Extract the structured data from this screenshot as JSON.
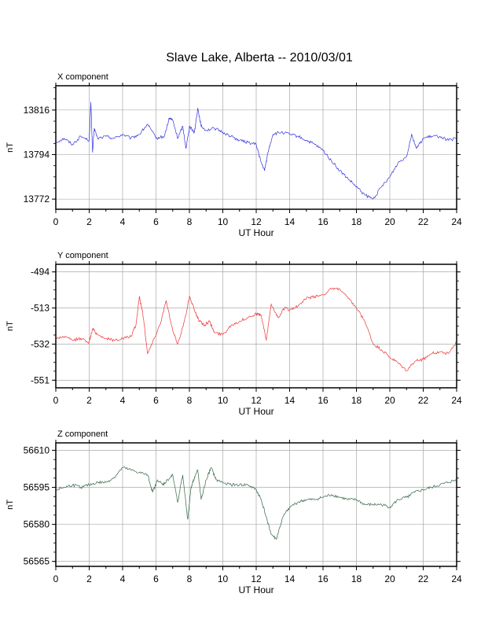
{
  "title": "Slave Lake, Alberta -- 2010/03/01",
  "chart_data": [
    {
      "type": "line",
      "panel_label": "X component",
      "xlabel": "UT Hour",
      "ylabel": "nT",
      "xlim": [
        0,
        24
      ],
      "ylim": [
        13767,
        13828
      ],
      "xticks": [
        0,
        2,
        4,
        6,
        8,
        10,
        12,
        14,
        16,
        18,
        20,
        22,
        24
      ],
      "yticks": [
        13772,
        13794,
        13816
      ],
      "grid": true,
      "color": "#3333dd",
      "x": [
        0,
        0.5,
        1,
        1.5,
        2.0,
        2.1,
        2.2,
        2.3,
        2.5,
        3,
        3.5,
        4,
        4.5,
        5,
        5.5,
        6,
        6.5,
        6.8,
        7.0,
        7.3,
        7.6,
        7.8,
        8.0,
        8.3,
        8.5,
        8.7,
        9.0,
        9.5,
        10,
        10.5,
        11,
        11.5,
        12,
        12.3,
        12.5,
        12.7,
        13,
        13.5,
        14,
        14.5,
        15,
        15.5,
        16,
        16.5,
        17,
        17.5,
        18,
        18.5,
        19,
        19.5,
        20,
        20.5,
        21.0,
        21.3,
        21.6,
        22,
        22.5,
        23,
        23.5,
        24
      ],
      "values": [
        13800,
        13802,
        13799,
        13803,
        13801,
        13820,
        13795,
        13807,
        13802,
        13803,
        13802,
        13804,
        13802,
        13804,
        13809,
        13802,
        13803,
        13812,
        13811,
        13802,
        13808,
        13797,
        13808,
        13805,
        13817,
        13808,
        13806,
        13807,
        13805,
        13803,
        13801,
        13800,
        13799,
        13790,
        13786,
        13795,
        13804,
        13805,
        13804,
        13803,
        13801,
        13799,
        13796,
        13791,
        13786,
        13782,
        13778,
        13774,
        13772,
        13778,
        13783,
        13790,
        13793,
        13804,
        13797,
        13802,
        13803,
        13803,
        13801,
        13802
      ]
    },
    {
      "type": "line",
      "panel_label": "Y component",
      "xlabel": "UT Hour",
      "ylabel": "nT",
      "xlim": [
        0,
        24
      ],
      "ylim": [
        -555,
        -490
      ],
      "xticks": [
        0,
        2,
        4,
        6,
        8,
        10,
        12,
        14,
        16,
        18,
        20,
        22,
        24
      ],
      "yticks": [
        -494,
        -513,
        -532,
        -551
      ],
      "grid": true,
      "color": "#ee3333",
      "x": [
        0,
        0.5,
        1,
        1.5,
        2,
        2.2,
        2.5,
        3,
        3.5,
        4,
        4.5,
        4.8,
        5.0,
        5.2,
        5.5,
        5.9,
        6.3,
        6.6,
        7.0,
        7.3,
        7.7,
        8.0,
        8.3,
        8.6,
        8.9,
        9.2,
        9.5,
        10,
        10.5,
        11,
        11.5,
        12,
        12.3,
        12.6,
        12.9,
        13.3,
        13.7,
        14,
        14.5,
        15,
        15.5,
        16,
        16.5,
        17,
        17.5,
        18,
        18.5,
        19,
        19.5,
        20,
        20.5,
        21,
        21.5,
        22,
        22.5,
        23,
        23.5,
        24
      ],
      "values": [
        -529,
        -528,
        -530,
        -529,
        -531,
        -524,
        -527,
        -529,
        -530,
        -529,
        -528,
        -522,
        -507,
        -515,
        -537,
        -529,
        -520,
        -509,
        -525,
        -532,
        -520,
        -507,
        -514,
        -520,
        -522,
        -520,
        -526,
        -527,
        -522,
        -520,
        -518,
        -516,
        -517,
        -530,
        -511,
        -518,
        -513,
        -514,
        -512,
        -508,
        -507,
        -506,
        -503,
        -503,
        -508,
        -513,
        -520,
        -532,
        -535,
        -539,
        -542,
        -546,
        -541,
        -540,
        -537,
        -536,
        -537,
        -531
      ]
    },
    {
      "type": "line",
      "panel_label": "Z component",
      "xlabel": "UT Hour",
      "ylabel": "nT",
      "xlim": [
        0,
        24
      ],
      "ylim": [
        56563,
        56613
      ],
      "xticks": [
        0,
        2,
        4,
        6,
        8,
        10,
        12,
        14,
        16,
        18,
        20,
        22,
        24
      ],
      "yticks": [
        56565,
        56580,
        56595,
        56610
      ],
      "grid": true,
      "color": "#336644",
      "x": [
        0,
        0.5,
        1,
        1.5,
        2,
        2.5,
        3,
        3.5,
        4,
        4.5,
        5,
        5.5,
        5.8,
        6.1,
        6.4,
        6.7,
        7.0,
        7.3,
        7.6,
        7.9,
        8.1,
        8.3,
        8.5,
        8.7,
        9.0,
        9.3,
        9.6,
        10,
        10.5,
        11,
        11.5,
        12,
        12.3,
        12.6,
        12.9,
        13.2,
        13.6,
        14,
        14.5,
        15,
        15.5,
        16,
        16.5,
        17,
        17.5,
        18,
        18.5,
        19,
        19.5,
        20,
        20.5,
        21,
        21.5,
        22,
        22.5,
        23,
        23.5,
        24
      ],
      "values": [
        56594,
        56595,
        56596,
        56595,
        56596,
        56597,
        56597,
        56599,
        56603,
        56602,
        56601,
        56600,
        56593,
        56598,
        56596,
        56598,
        56600,
        56589,
        56600,
        56582,
        56595,
        56599,
        56602,
        56590,
        56598,
        56603,
        56598,
        56597,
        56596,
        56596,
        56596,
        56594,
        56590,
        56583,
        56576,
        56574,
        56583,
        56587,
        56589,
        56590,
        56590,
        56591,
        56592,
        56591,
        56590,
        56590,
        56588,
        56588,
        56588,
        56587,
        56590,
        56591,
        56593,
        56594,
        56595,
        56596,
        56597,
        56598
      ]
    }
  ]
}
